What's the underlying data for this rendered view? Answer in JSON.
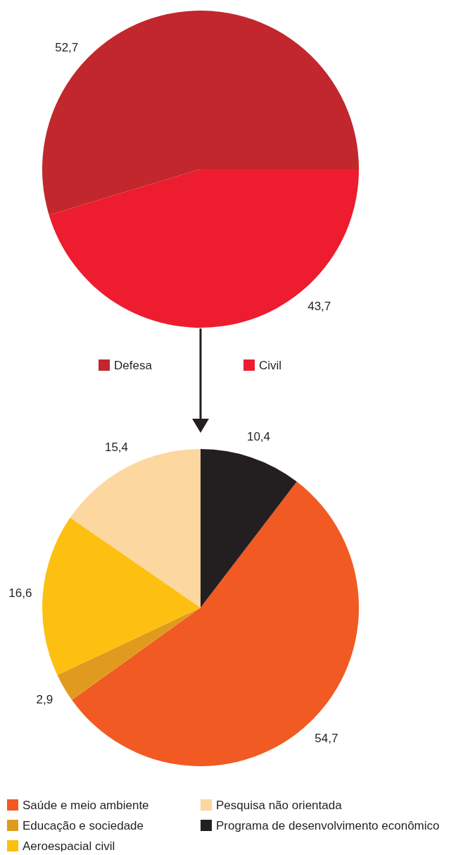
{
  "chart_data": [
    {
      "type": "pie",
      "categories": [
        "Defesa",
        "Civil"
      ],
      "values": [
        52.7,
        43.7
      ],
      "colors": [
        "#c1272d",
        "#ed1c2e"
      ],
      "value_labels": [
        "52,7",
        "43,7"
      ],
      "legend": "bottom"
    },
    {
      "type": "pie",
      "categories": [
        "Saúde e meio ambiente",
        "Educação e sociedade",
        "Aeroespacial civil",
        "Pesquisa não orientada",
        "Programa de desenvolvimento econômico"
      ],
      "values": [
        54.7,
        2.9,
        16.6,
        15.4,
        10.4
      ],
      "colors": [
        "#f15a22",
        "#e09a1e",
        "#fdc010",
        "#fdd7a0",
        "#231f20"
      ],
      "value_labels": [
        "54,7",
        "2,9",
        "16,6",
        "15,4",
        "10,4"
      ],
      "legend": "bottom"
    }
  ]
}
